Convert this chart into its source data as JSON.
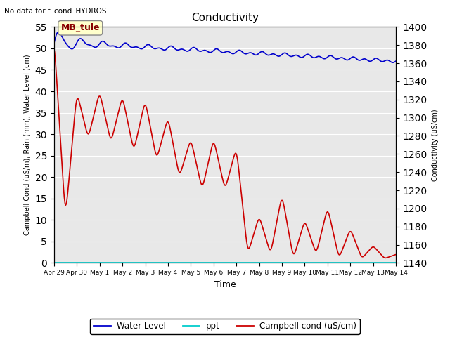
{
  "title": "Conductivity",
  "note": "No data for f_cond_HYDROS",
  "xlabel": "Time",
  "ylabel_left": "Campbell Cond (uS/m), Rain (mm), Water Level (cm)",
  "ylabel_right": "Conductivity (uS/cm)",
  "ylim_left": [
    0,
    55
  ],
  "ylim_right": [
    1140,
    1400
  ],
  "yticks_left": [
    0,
    5,
    10,
    15,
    20,
    25,
    30,
    35,
    40,
    45,
    50,
    55
  ],
  "yticks_right": [
    1140,
    1160,
    1180,
    1200,
    1220,
    1240,
    1260,
    1280,
    1300,
    1320,
    1340,
    1360,
    1380,
    1400
  ],
  "xtick_labels": [
    "Apr 29",
    "Apr 30",
    "May 1",
    "May 2",
    "May 3",
    "May 4",
    "May 5",
    "May 6",
    "May 7",
    "May 8",
    "May 9",
    "May 10",
    "May 11",
    "May 12",
    "May 13",
    "May 14"
  ],
  "n_xpoints": 500,
  "background_color": "#e8e8e8",
  "water_level_color": "#0000cc",
  "ppt_color": "#00cccc",
  "campbell_color": "#cc0000",
  "legend_entries": [
    "Water Level",
    "ppt",
    "Campbell cond (uS/cm)"
  ],
  "mb_tule_label": "MB_tule",
  "mb_tule_bgcolor": "#ffffcc",
  "figsize": [
    6.4,
    4.8
  ],
  "dpi": 100
}
